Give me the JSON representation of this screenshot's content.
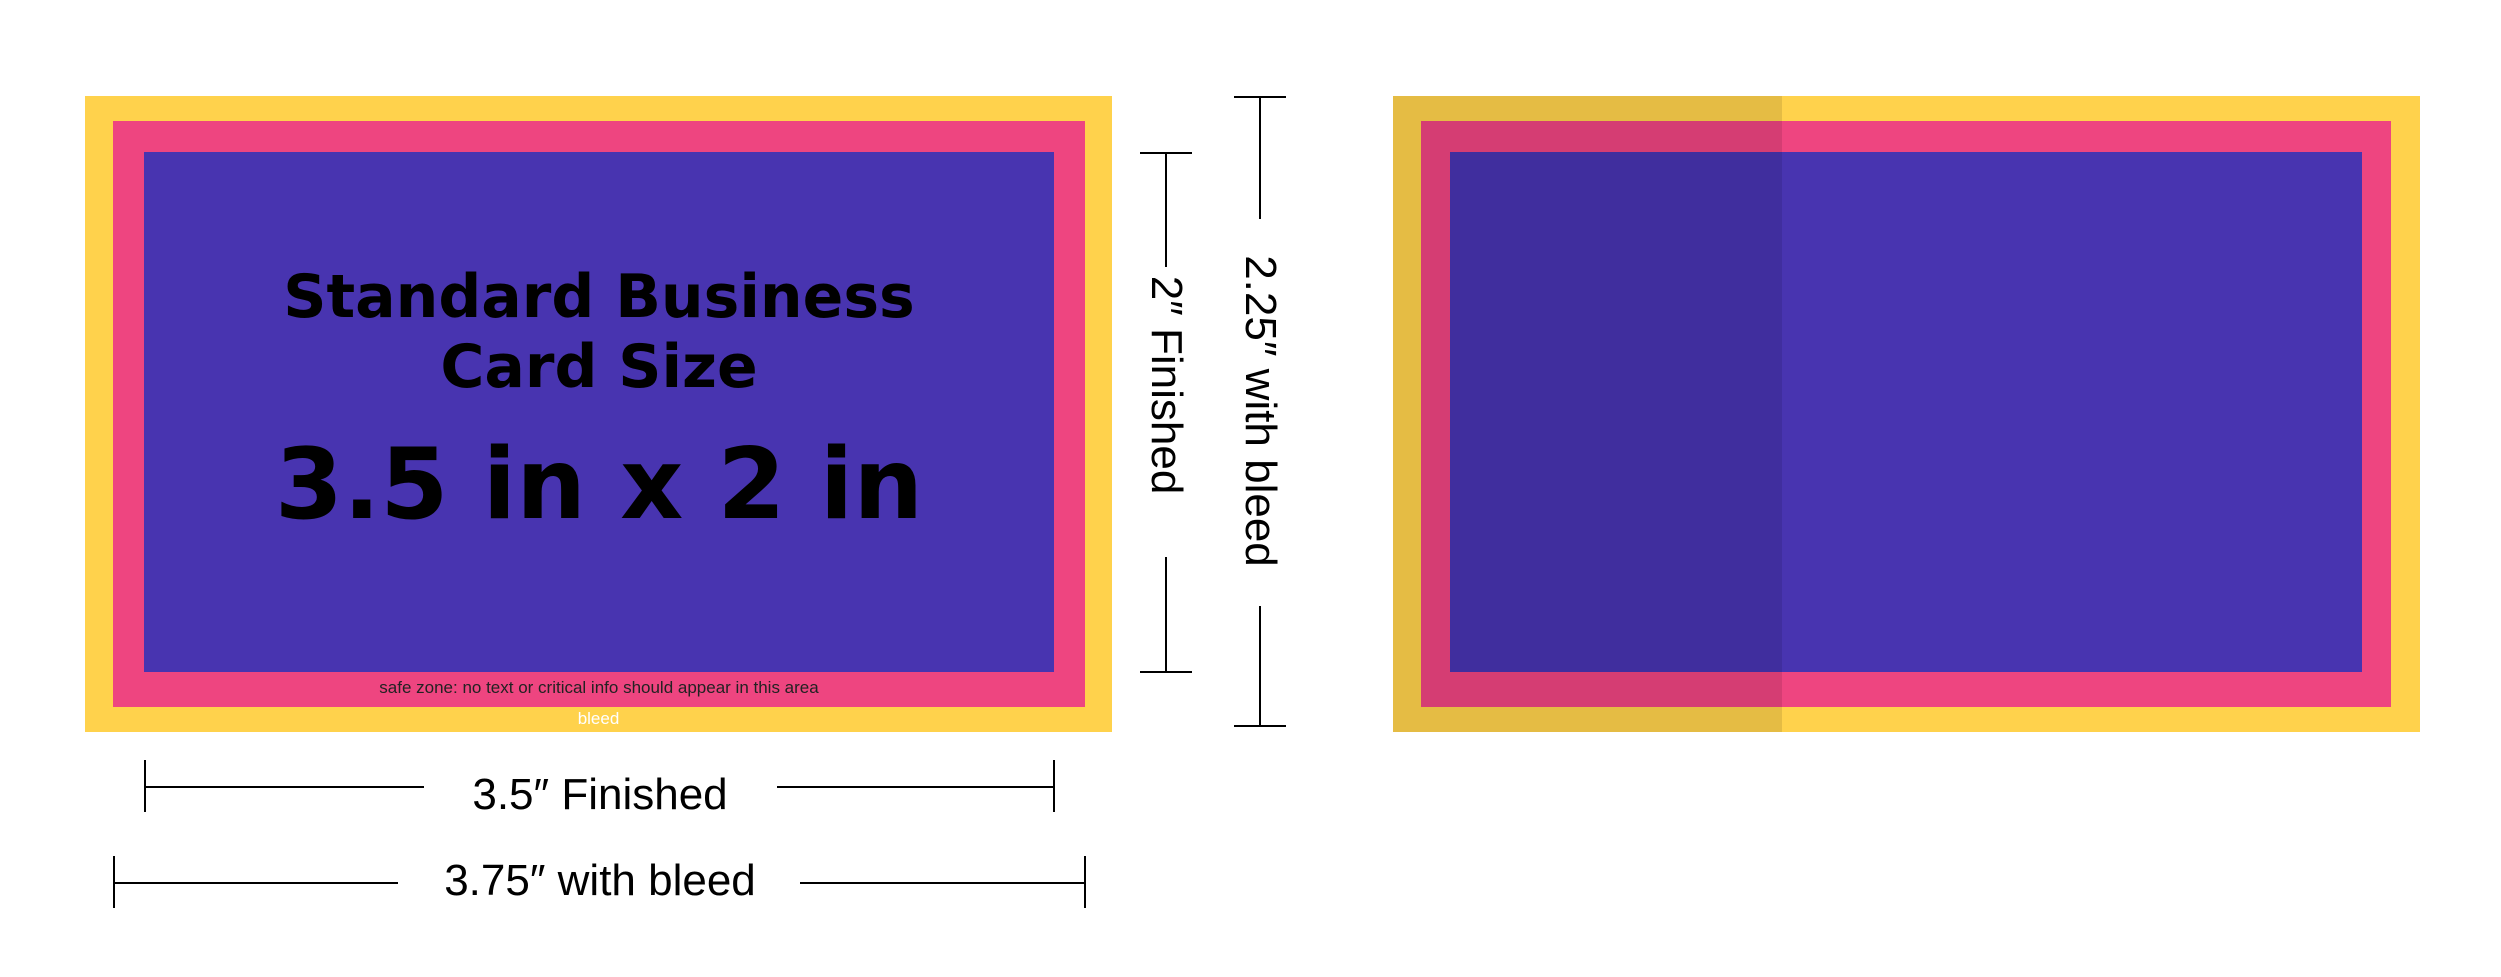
{
  "colors": {
    "bleed": "#FFD24C",
    "trim": "#EE4580",
    "safe": "#4834B0"
  },
  "front_card": {
    "title_line1": "Standard Business",
    "title_line2": "Card Size",
    "size": "3.5 in x 2 in",
    "safe_zone_label": "safe zone: no text or critical info should appear in this area",
    "bleed_label": "bleed"
  },
  "dimensions": {
    "height_finished": "2″ Finished",
    "height_bleed": "2.25″ with bleed",
    "width_finished": "3.5″ Finished",
    "width_bleed": "3.75″ with bleed"
  }
}
